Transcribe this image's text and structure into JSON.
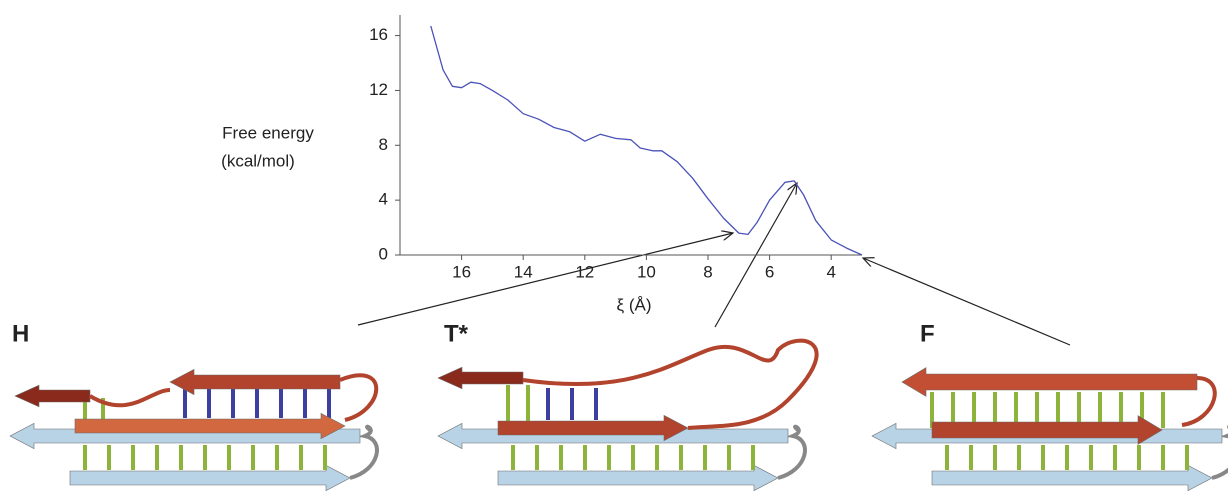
{
  "chart_data": {
    "type": "line",
    "ylabel": [
      "Free energy",
      "(kcal/mol)"
    ],
    "xlabel": "ξ (Å)",
    "xlim": [
      18,
      3
    ],
    "ylim": [
      0,
      17.5
    ],
    "xticks": [
      16,
      14,
      12,
      10,
      8,
      6,
      4
    ],
    "yticks": [
      0,
      4,
      8,
      12,
      16
    ],
    "series": [
      {
        "color": "#4b52b8",
        "x": [
          17.0,
          16.6,
          16.3,
          16.0,
          15.7,
          15.4,
          15.0,
          14.5,
          14.0,
          13.5,
          13.0,
          12.5,
          12.0,
          11.5,
          11.0,
          10.5,
          10.2,
          9.8,
          9.5,
          9.0,
          8.5,
          8.0,
          7.5,
          7.0,
          6.7,
          6.4,
          6.0,
          5.5,
          5.2,
          4.9,
          4.5,
          4.0,
          3.5,
          3.0
        ],
        "values": [
          16.7,
          13.5,
          12.3,
          12.2,
          12.6,
          12.5,
          12.0,
          11.3,
          10.3,
          9.9,
          9.3,
          9.0,
          8.3,
          8.8,
          8.5,
          8.4,
          7.8,
          7.6,
          7.6,
          6.8,
          5.6,
          4.1,
          2.7,
          1.6,
          1.5,
          2.4,
          4.0,
          5.3,
          5.4,
          4.4,
          2.5,
          1.1,
          0.5,
          0.0
        ]
      }
    ]
  },
  "panels": [
    {
      "label": "H"
    },
    {
      "label": "T*"
    },
    {
      "label": "F"
    }
  ]
}
